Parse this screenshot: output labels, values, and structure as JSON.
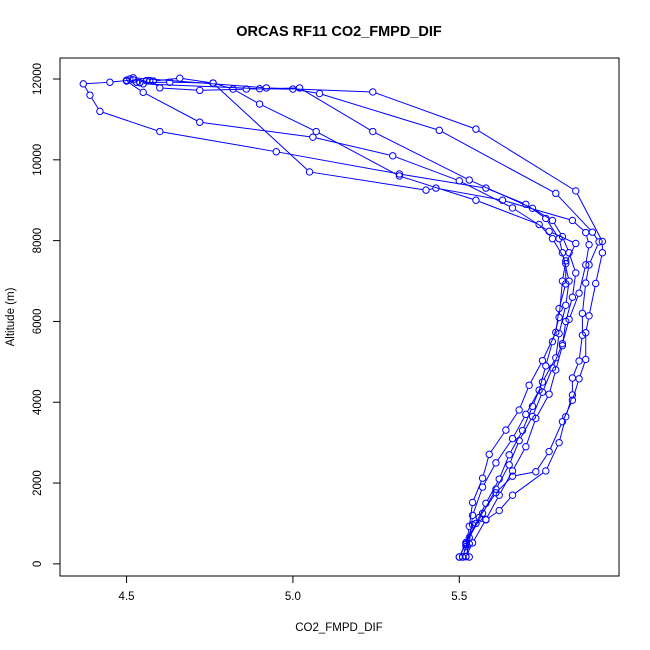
{
  "chart_data": {
    "type": "line",
    "title": "ORCAS RF11 CO2_FMPD_DIF",
    "xlabel": "CO2_FMPD_DIF",
    "ylabel": "Altitude (m)",
    "xlim": [
      4.3,
      5.98
    ],
    "ylim": [
      -300,
      12520
    ],
    "x_ticks": [
      4.5,
      5.0,
      5.5
    ],
    "x_tick_labels": [
      "4.5",
      "5.0",
      "5.5"
    ],
    "y_ticks": [
      0,
      2000,
      4000,
      6000,
      8000,
      10000,
      12000
    ],
    "y_tick_labels": [
      "0",
      "2000",
      "4000",
      "6000",
      "8000",
      "10000",
      "12000"
    ],
    "grid": false,
    "color": "#0000ff",
    "series": [
      {
        "points": [
          [
            5.53,
            170
          ],
          [
            5.52,
            480
          ],
          [
            5.55,
            1000
          ],
          [
            5.58,
            1500
          ],
          [
            5.62,
            2100
          ],
          [
            5.65,
            2700
          ],
          [
            5.69,
            3300
          ],
          [
            5.72,
            3900
          ],
          [
            5.75,
            4500
          ],
          [
            5.79,
            5100
          ],
          [
            5.8,
            5700
          ],
          [
            5.82,
            6400
          ],
          [
            5.83,
            7000
          ],
          [
            5.81,
            7700
          ],
          [
            5.8,
            8050
          ],
          [
            5.76,
            8550
          ],
          [
            5.7,
            8900
          ],
          [
            5.58,
            9300
          ],
          [
            5.32,
            9650
          ],
          [
            4.95,
            10200
          ],
          [
            4.6,
            10700
          ],
          [
            4.42,
            11200
          ],
          [
            4.39,
            11600
          ],
          [
            4.37,
            11880
          ],
          [
            4.45,
            11920
          ],
          [
            4.52,
            11980
          ],
          [
            4.56,
            11960
          ],
          [
            4.58,
            11950
          ]
        ]
      },
      {
        "points": [
          [
            4.58,
            11950
          ],
          [
            4.66,
            12020
          ],
          [
            4.76,
            11900
          ],
          [
            4.82,
            11750
          ],
          [
            4.9,
            11380
          ],
          [
            5.07,
            10700
          ],
          [
            5.32,
            9600
          ],
          [
            5.55,
            9000
          ],
          [
            5.74,
            8400
          ],
          [
            5.78,
            8050
          ],
          [
            5.82,
            7500
          ],
          [
            5.81,
            7000
          ],
          [
            5.8,
            6100
          ],
          [
            5.78,
            5500
          ],
          [
            5.76,
            4900
          ],
          [
            5.74,
            4300
          ],
          [
            5.7,
            3700
          ],
          [
            5.66,
            3100
          ],
          [
            5.61,
            2500
          ],
          [
            5.57,
            1900
          ],
          [
            5.54,
            1200
          ],
          [
            5.53,
            500
          ],
          [
            5.52,
            180
          ]
        ]
      },
      {
        "points": [
          [
            5.52,
            180
          ],
          [
            5.54,
            520
          ],
          [
            5.58,
            1100
          ],
          [
            5.62,
            1700
          ],
          [
            5.66,
            2300
          ],
          [
            5.7,
            2900
          ],
          [
            5.73,
            3600
          ],
          [
            5.77,
            4200
          ],
          [
            5.79,
            4800
          ],
          [
            5.81,
            5400
          ],
          [
            5.82,
            6000
          ],
          [
            5.84,
            6600
          ],
          [
            5.85,
            7200
          ],
          [
            5.83,
            7700
          ],
          [
            5.81,
            8100
          ],
          [
            5.78,
            8500
          ],
          [
            5.72,
            8800
          ],
          [
            5.53,
            9500
          ],
          [
            5.24,
            10700
          ],
          [
            5.02,
            11780
          ],
          [
            4.86,
            11750
          ],
          [
            4.72,
            11720
          ],
          [
            4.6,
            11780
          ],
          [
            4.57,
            11960
          ]
        ]
      },
      {
        "points": [
          [
            4.57,
            11960
          ],
          [
            4.53,
            11920
          ],
          [
            4.5,
            11950
          ],
          [
            4.55,
            11670
          ],
          [
            4.72,
            10930
          ],
          [
            5.06,
            10560
          ],
          [
            5.3,
            10100
          ],
          [
            5.5,
            9480
          ],
          [
            5.66,
            8810
          ],
          [
            5.77,
            8230
          ],
          [
            5.85,
            7930
          ],
          [
            5.82,
            7430
          ],
          [
            5.82,
            6930
          ],
          [
            5.8,
            6320
          ],
          [
            5.79,
            5730
          ],
          [
            5.75,
            5030
          ],
          [
            5.71,
            4420
          ],
          [
            5.68,
            3810
          ],
          [
            5.64,
            3310
          ],
          [
            5.59,
            2710
          ],
          [
            5.57,
            2120
          ],
          [
            5.54,
            1520
          ],
          [
            5.53,
            930
          ],
          [
            5.52,
            430
          ],
          [
            5.51,
            170
          ]
        ]
      },
      {
        "points": [
          [
            5.51,
            170
          ],
          [
            5.53,
            650
          ],
          [
            5.57,
            1250
          ],
          [
            5.61,
            1850
          ],
          [
            5.65,
            2450
          ],
          [
            5.68,
            3050
          ],
          [
            5.72,
            3650
          ],
          [
            5.75,
            4250
          ],
          [
            5.78,
            4850
          ],
          [
            5.81,
            5450
          ],
          [
            5.83,
            6050
          ],
          [
            5.86,
            6700
          ],
          [
            5.88,
            7400
          ],
          [
            5.89,
            7900
          ],
          [
            5.88,
            8200
          ],
          [
            5.84,
            8500
          ],
          [
            5.63,
            9000
          ],
          [
            5.43,
            9300
          ],
          [
            5.4,
            9250
          ],
          [
            5.05,
            9700
          ],
          [
            4.76,
            11900
          ],
          [
            4.63,
            11920
          ],
          [
            4.54,
            11910
          ]
        ]
      },
      {
        "points": [
          [
            4.54,
            11910
          ],
          [
            4.55,
            11880
          ],
          [
            4.9,
            11760
          ],
          [
            5.0,
            11750
          ],
          [
            5.08,
            11640
          ],
          [
            5.44,
            10730
          ],
          [
            5.79,
            9170
          ],
          [
            5.9,
            8210
          ],
          [
            5.92,
            7970
          ],
          [
            5.89,
            7400
          ],
          [
            5.88,
            6950
          ],
          [
            5.87,
            6200
          ],
          [
            5.87,
            5660
          ],
          [
            5.86,
            5020
          ],
          [
            5.84,
            4600
          ],
          [
            5.84,
            4180
          ],
          [
            5.82,
            3640
          ],
          [
            5.8,
            3000
          ],
          [
            5.76,
            2300
          ],
          [
            5.66,
            1700
          ],
          [
            5.62,
            1320
          ],
          [
            5.58,
            1090
          ],
          [
            5.54,
            970
          ],
          [
            5.52,
            500
          ],
          [
            5.5,
            170
          ]
        ]
      },
      {
        "points": [
          [
            5.5,
            170
          ],
          [
            5.52,
            530
          ],
          [
            5.56,
            1150
          ],
          [
            5.61,
            1760
          ],
          [
            5.66,
            2170
          ],
          [
            5.73,
            2280
          ],
          [
            5.77,
            2780
          ],
          [
            5.81,
            3520
          ],
          [
            5.84,
            4050
          ],
          [
            5.86,
            4580
          ],
          [
            5.88,
            5060
          ],
          [
            5.88,
            5720
          ],
          [
            5.89,
            6140
          ],
          [
            5.91,
            6940
          ],
          [
            5.93,
            7700
          ],
          [
            5.93,
            7980
          ],
          [
            5.85,
            9230
          ],
          [
            5.55,
            10760
          ],
          [
            5.24,
            11680
          ],
          [
            4.92,
            11780
          ],
          [
            4.52,
            12030
          ],
          [
            4.5,
            11970
          ],
          [
            4.51,
            12000
          ]
        ]
      }
    ]
  }
}
